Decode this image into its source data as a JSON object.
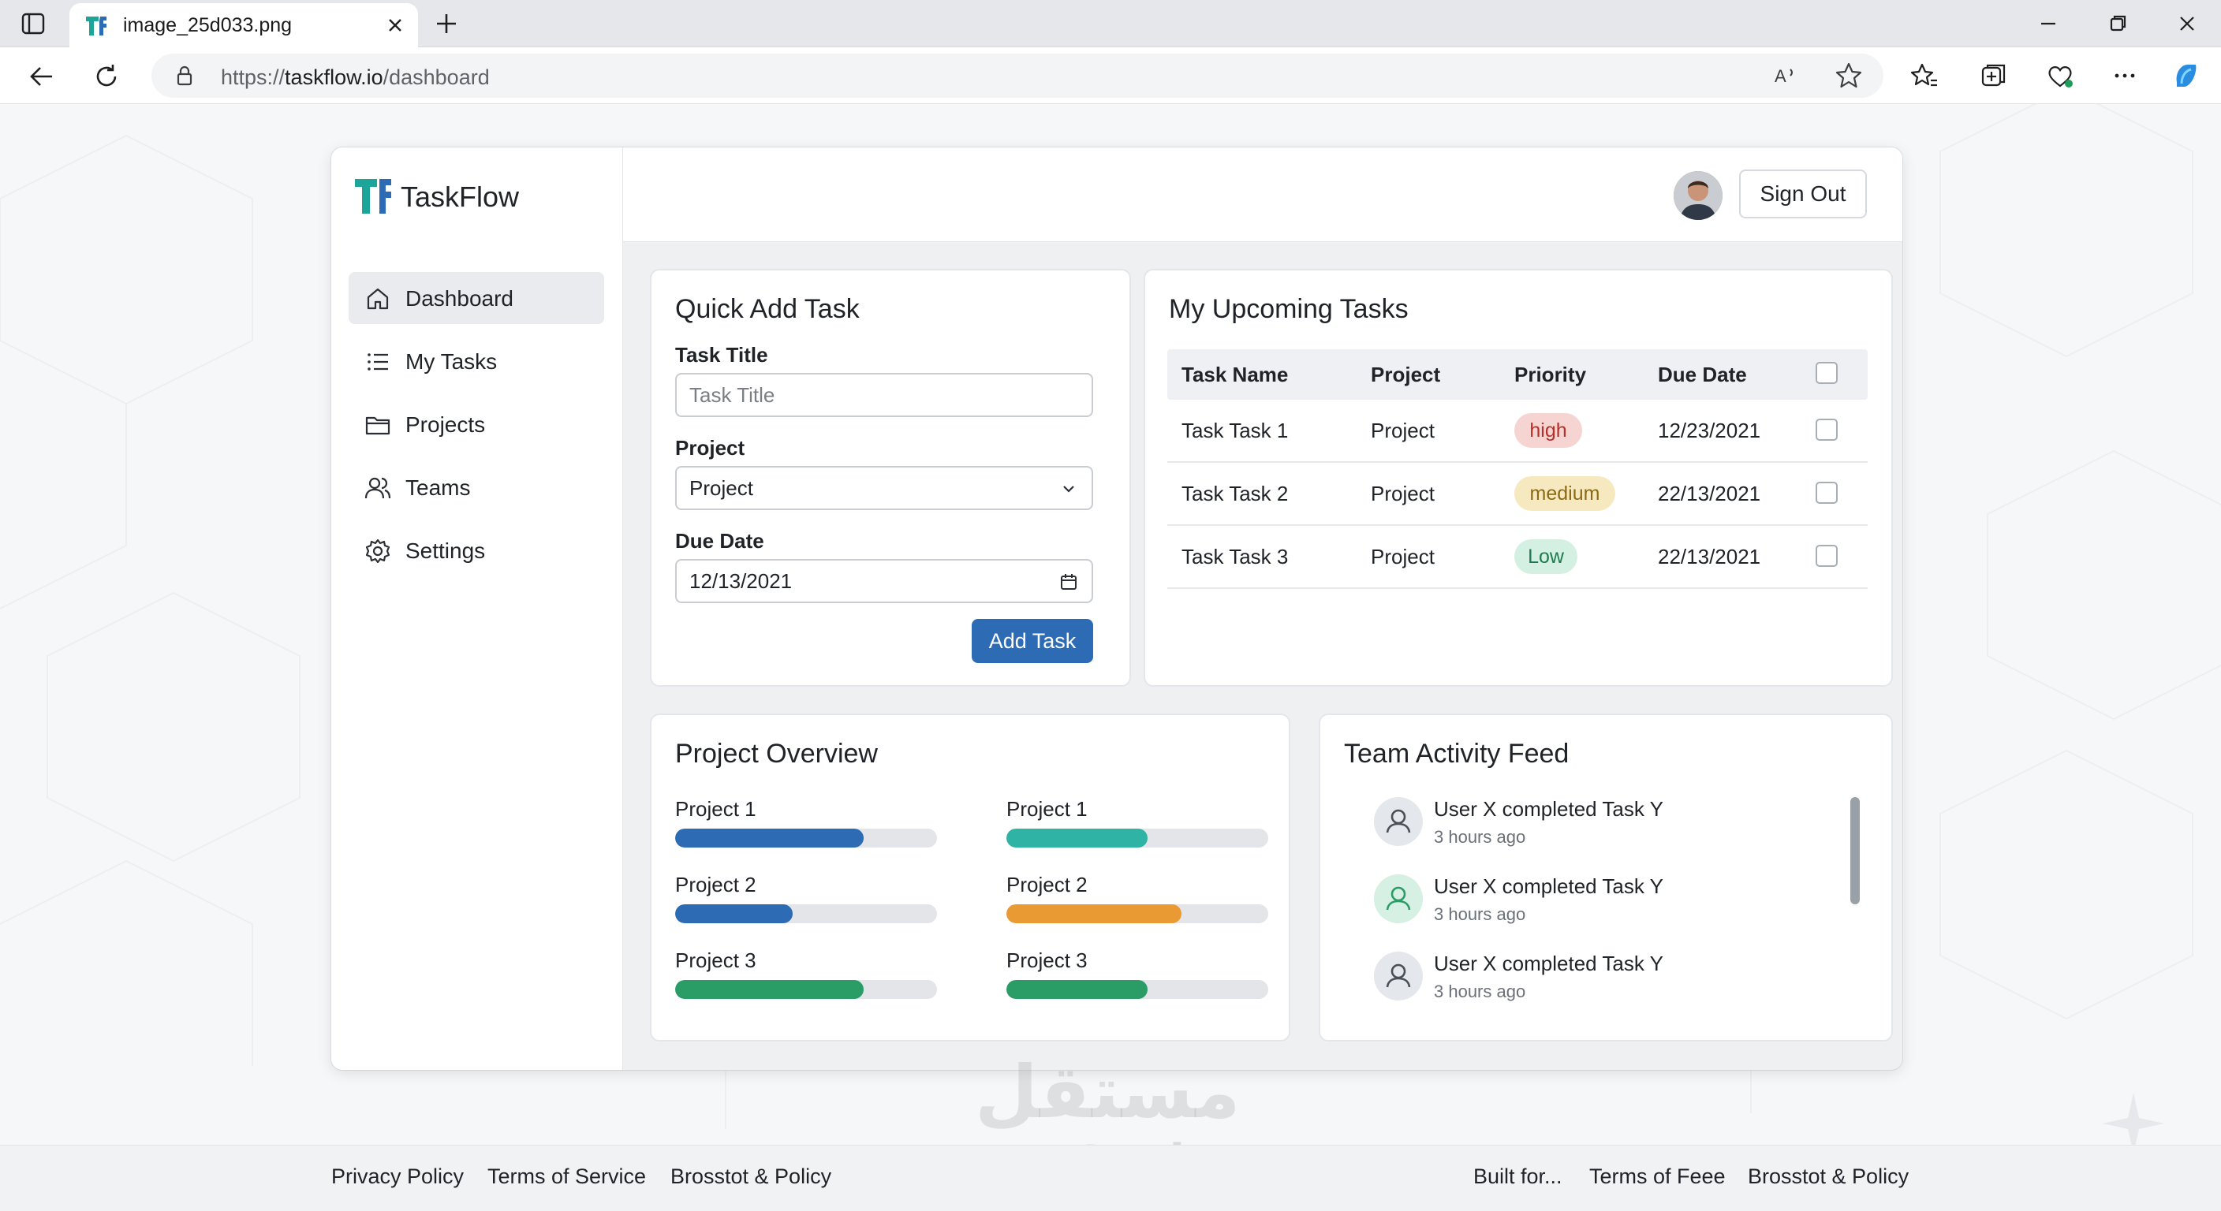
{
  "browser": {
    "tab_title": "image_25d033.png",
    "url_scheme": "https://",
    "url_host": "taskflow.io",
    "url_path": "/dashboard"
  },
  "app": {
    "brand": "TaskFlow",
    "sidebar": {
      "items": [
        {
          "label": "Dashboard",
          "icon": "home-icon",
          "active": true
        },
        {
          "label": "My Tasks",
          "icon": "list-icon",
          "active": false
        },
        {
          "label": "Projects",
          "icon": "folder-icon",
          "active": false
        },
        {
          "label": "Teams",
          "icon": "users-icon",
          "active": false
        },
        {
          "label": "Settings",
          "icon": "gear-icon",
          "active": false
        }
      ]
    },
    "header": {
      "sign_out": "Sign Out"
    }
  },
  "quick_add": {
    "title": "Quick Add Task",
    "task_title_label": "Task Title",
    "task_title_placeholder": "Task Title",
    "project_label": "Project",
    "project_value": "Project",
    "due_date_label": "Due Date",
    "due_date_value": "12/13/2021",
    "add_button": "Add Task"
  },
  "upcoming": {
    "title": "My Upcoming Tasks",
    "columns": [
      "Task Name",
      "Project",
      "Priority",
      "Due Date"
    ],
    "rows": [
      {
        "name": "Task Task 1",
        "project": "Project",
        "priority": "high",
        "due": "12/23/2021"
      },
      {
        "name": "Task Task 2",
        "project": "Project",
        "priority": "medium",
        "due": "22/13/2021"
      },
      {
        "name": "Task Task 3",
        "project": "Project",
        "priority": "Low",
        "due": "22/13/2021"
      }
    ],
    "priority_colors": {
      "high": {
        "bg": "#f6d4d1",
        "fg": "#b4302a"
      },
      "medium": {
        "bg": "#f7e9bf",
        "fg": "#8a6a12"
      },
      "low": {
        "bg": "#d4f0e2",
        "fg": "#1f7a4f"
      }
    }
  },
  "overview": {
    "title": "Project Overview",
    "left": [
      {
        "label": "Project 1",
        "progress": 0.72,
        "color": "#2d6cb5"
      },
      {
        "label": "Project 2",
        "progress": 0.45,
        "color": "#2d6cb5"
      },
      {
        "label": "Project 3",
        "progress": 0.72,
        "color": "#2a9d67"
      }
    ],
    "right": [
      {
        "label": "Project 1",
        "progress": 0.54,
        "color": "#2fb3a4"
      },
      {
        "label": "Project 2",
        "progress": 0.67,
        "color": "#e99a33"
      },
      {
        "label": "Project 3",
        "progress": 0.54,
        "color": "#2a9d67"
      }
    ]
  },
  "activity": {
    "title": "Team Activity Feed",
    "items": [
      {
        "text": "User X completed Task Y",
        "time": "3 hours ago",
        "avatar_color": "#e4e7eb"
      },
      {
        "text": "User X completed Task Y",
        "time": "3 hours ago",
        "avatar_color": "#d6f0e3"
      },
      {
        "text": "User X completed Task Y",
        "time": "3 hours ago",
        "avatar_color": "#e4e7eb"
      }
    ]
  },
  "footer": {
    "left_links": [
      "Privacy Policy",
      "Terms of Service",
      "Brosstot & Policy"
    ],
    "right_links": [
      "Built for...",
      "Terms of Feee",
      "Brosstot & Policy"
    ]
  },
  "watermark": {
    "logo": "مستقل",
    "text": "mostaql.com"
  },
  "colors": {
    "accent": "#2d6cb5",
    "brand_teal": "#1ea59a"
  }
}
